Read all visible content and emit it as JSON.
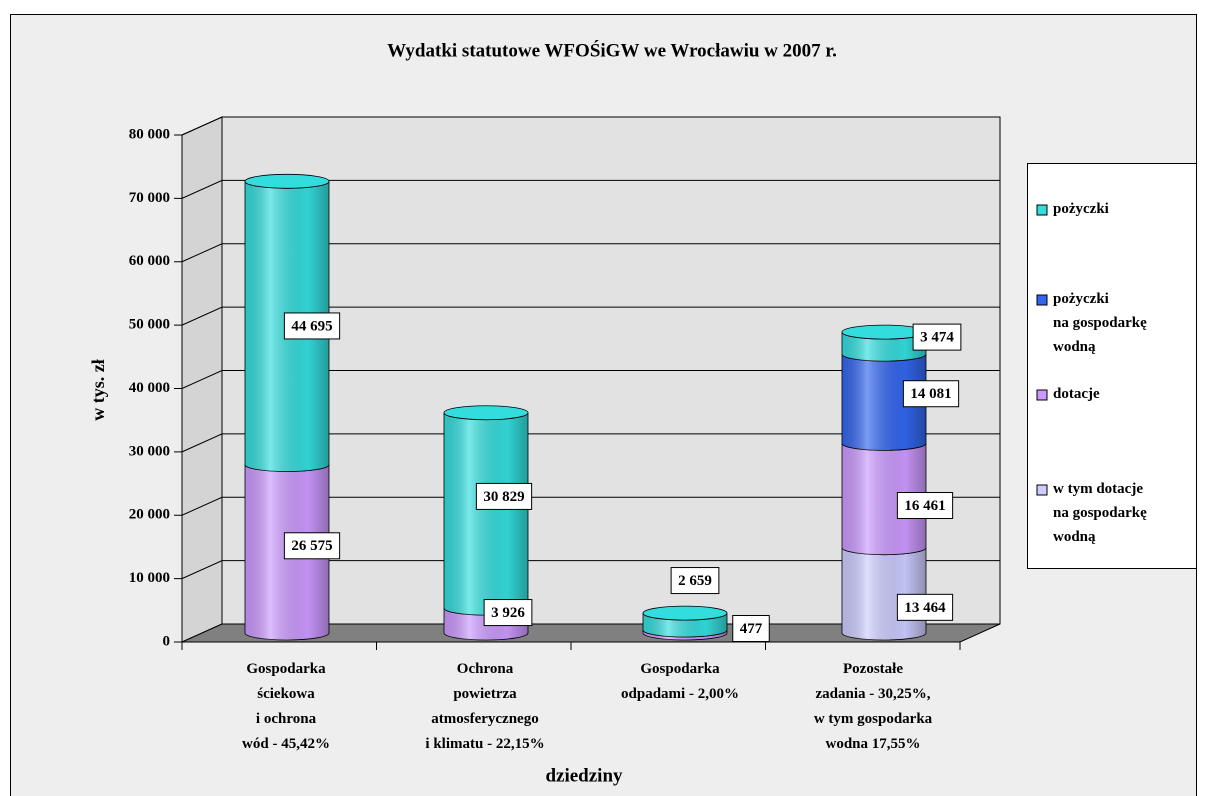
{
  "chart_data": {
    "type": "bar3d",
    "stacked": true,
    "title": "Wydatki statutowe WFOŚiGW we Wrocławiu w 2007 r.",
    "xlabel": "dziedziny",
    "ylabel": "w tys. zł",
    "categories": [
      "Gospodarka\nściekowa\ni ochrona\nwód - 45,42%",
      "Ochrona\npowietrza\natmosferycznego\ni klimatu - 22,15%",
      "Gospodarka\nodpadami - 2,00%",
      "Pozostałe\nzadania - 30,25%,\nw tym gospodarka\nwodna 17,55%"
    ],
    "series": [
      {
        "name": "pożyczki",
        "color": "#33dddd",
        "values": [
          44695,
          30829,
          2659,
          3474
        ],
        "value_labels": [
          "44 695",
          "30 829",
          "2 659",
          "3 474"
        ]
      },
      {
        "name": "pożyczki\nna gospodarkę\nwodną",
        "color": "#3366ee",
        "values": [
          null,
          null,
          null,
          14081
        ],
        "value_labels": [
          null,
          null,
          null,
          "14 081"
        ]
      },
      {
        "name": "dotacje",
        "color": "#cc99ff",
        "values": [
          26575,
          3926,
          477,
          16461
        ],
        "value_labels": [
          "26 575",
          "3 926",
          "477",
          "16 461"
        ]
      },
      {
        "name": "w tym dotacje\nna gospodarkę\nwodną",
        "color": "#ccccff",
        "values": [
          null,
          null,
          null,
          13464
        ],
        "value_labels": [
          null,
          null,
          null,
          "13 464"
        ]
      }
    ],
    "ylim": [
      0,
      80000
    ],
    "yticks": [
      0,
      {
        "value": 10000,
        "label": "10 000"
      },
      {
        "value": 20000,
        "label": "20 000"
      },
      {
        "value": 30000,
        "label": "30 000"
      },
      {
        "value": 40000,
        "label": "40 000"
      },
      {
        "value": 50000,
        "label": "50 000"
      },
      {
        "value": 60000,
        "label": "60 000"
      },
      {
        "value": 70000,
        "label": "70 000"
      },
      {
        "value": 80000,
        "label": "80 000"
      }
    ],
    "grid": true,
    "legend": "right"
  }
}
